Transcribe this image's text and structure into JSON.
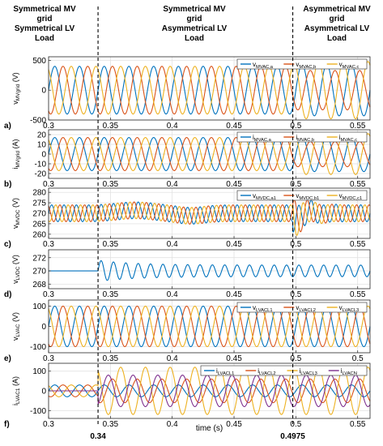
{
  "headers": [
    {
      "lines": [
        "Symmetrical MV",
        "grid",
        "Symmetrical LV",
        "Load"
      ]
    },
    {
      "lines": [
        "Symmetrical MV",
        "grid",
        "Asymmetrical LV",
        "Load"
      ]
    },
    {
      "lines": [
        "Asymmetrical MV",
        "grid",
        "Asymmetrical LV",
        "Load"
      ]
    }
  ],
  "markers": [
    {
      "t": 0.34,
      "label": "0.34"
    },
    {
      "t": 0.4975,
      "label": "0.4975"
    }
  ],
  "xlabel": "time (s)",
  "colors": {
    "blue": "#0072BD",
    "orange": "#D95319",
    "yellow": "#EDB120",
    "purple": "#7E2F8E"
  },
  "chart_data": [
    {
      "type": "line",
      "panel": "a)",
      "ylabel": "v_MVgrid (V)",
      "xlim": [
        0.3,
        0.56
      ],
      "ylim": [
        -500,
        560
      ],
      "xticks": [
        0.3,
        0.35,
        0.4,
        0.45,
        0.5,
        0.55
      ],
      "xtick_labels": [
        "0.3",
        "0.35",
        "0.4",
        "0.45",
        "0.5",
        "0.55"
      ],
      "yticks": [
        -500,
        0,
        500
      ],
      "ytick_labels": [
        "-500",
        "0",
        "500"
      ],
      "legend": [
        "v_MVAC,a",
        "v_MVAC,b",
        "v_MVAC,c"
      ],
      "series": [
        {
          "name": "v_MVAC,a",
          "color": "blue",
          "amplitude": 400,
          "phase_deg": 0,
          "frequency_hz": 50,
          "amplitude_after_0.4975": 430
        },
        {
          "name": "v_MVAC,b",
          "color": "orange",
          "amplitude": 400,
          "phase_deg": -120,
          "frequency_hz": 50,
          "amplitude_after_0.4975": 330
        },
        {
          "name": "v_MVAC,c",
          "color": "yellow",
          "amplitude": 400,
          "phase_deg": 120,
          "frequency_hz": 50,
          "amplitude_after_0.4975": 480
        }
      ]
    },
    {
      "type": "line",
      "panel": "b)",
      "ylabel": "i_MVgrid (A)",
      "xlim": [
        0.3,
        0.56
      ],
      "ylim": [
        -25,
        25
      ],
      "xticks": [
        0.3,
        0.35,
        0.4,
        0.45,
        0.5,
        0.55
      ],
      "xtick_labels": [
        "0.3",
        "0.35",
        "0.4",
        "0.45",
        "0.5",
        "0.55"
      ],
      "yticks": [
        -20,
        -10,
        0,
        10,
        20
      ],
      "ytick_labels": [
        "-20",
        "-10",
        "0",
        "10",
        "20"
      ],
      "legend": [
        "i_MVAC,a",
        "i_MVAC,b",
        "i_MVAC,c"
      ],
      "series": [
        {
          "name": "i_MVAC,a",
          "color": "blue",
          "amplitude": 17,
          "phase_deg": 0,
          "frequency_hz": 50,
          "amplitude_after_0.4975": 18
        },
        {
          "name": "i_MVAC,b",
          "color": "orange",
          "amplitude": 17,
          "phase_deg": -120,
          "frequency_hz": 50,
          "amplitude_after_0.4975": 13
        },
        {
          "name": "i_MVAC,c",
          "color": "yellow",
          "amplitude": 17,
          "phase_deg": 120,
          "frequency_hz": 50,
          "amplitude_after_0.4975": 21
        }
      ]
    },
    {
      "type": "line",
      "panel": "c)",
      "ylabel": "v_MVDC (V)",
      "xlim": [
        0.3,
        0.56
      ],
      "ylim": [
        258,
        282
      ],
      "xticks": [
        0.3,
        0.35,
        0.4,
        0.45,
        0.5,
        0.55
      ],
      "xtick_labels": [
        "0.3",
        "0.35",
        "0.4",
        "0.45",
        "0.5",
        "0.55"
      ],
      "yticks": [
        260,
        265,
        270,
        275,
        280
      ],
      "ytick_labels": [
        "260",
        "265",
        "270",
        "275",
        "280"
      ],
      "legend": [
        "v_MVDC,a1",
        "v_MVDC,b1",
        "v_MVDC,c1"
      ],
      "series": [
        {
          "name": "v_MVDC,a1",
          "color": "blue",
          "offset": 270,
          "ripple_amplitude": 4,
          "frequency_hz": 100,
          "phase_deg": 0
        },
        {
          "name": "v_MVDC,b1",
          "color": "orange",
          "offset": 270,
          "ripple_amplitude": 4,
          "frequency_hz": 100,
          "phase_deg": -240
        },
        {
          "name": "v_MVDC,c1",
          "color": "yellow",
          "offset": 270,
          "ripple_amplitude": 4,
          "frequency_hz": 100,
          "phase_deg": 240
        }
      ]
    },
    {
      "type": "line",
      "panel": "d)",
      "ylabel": "v_LVDC (V)",
      "xlim": [
        0.3,
        0.56
      ],
      "ylim": [
        267.3,
        273.2
      ],
      "xticks": [
        0.3,
        0.35,
        0.4,
        0.45,
        0.5,
        0.55
      ],
      "xtick_labels": [
        "0.3",
        "0.35",
        "0.4",
        "0.45",
        "0.5",
        "0.55"
      ],
      "yticks": [
        268,
        270,
        272
      ],
      "ytick_labels": [
        "268",
        "270",
        "272"
      ],
      "legend": [],
      "series": [
        {
          "name": "v_LVDC",
          "color": "blue",
          "steady_value": 270,
          "oscillation_amplitude": 1.6,
          "frequency_hz": 100,
          "start_t": 0.34
        }
      ]
    },
    {
      "type": "line",
      "panel": "e)",
      "ylabel": "v_LVAC (V)",
      "xlim": [
        0.3,
        0.56
      ],
      "ylim": [
        -130,
        130
      ],
      "xticks": [
        0.3,
        0.35,
        0.4,
        0.45,
        0.5,
        0.55
      ],
      "xtick_labels": [
        "0.3",
        "0.35",
        "0.4",
        "0.45",
        "0.5",
        "0.5\n5"
      ],
      "yticks": [
        -100,
        0,
        100
      ],
      "ytick_labels": [
        "-100",
        "0",
        "100"
      ],
      "legend": [
        "v_LVACL1",
        "v_LVACL2",
        "v_LVACL3"
      ],
      "series": [
        {
          "name": "v_LVACL1",
          "color": "blue",
          "amplitude": 100,
          "phase_deg": 0,
          "frequency_hz": 50
        },
        {
          "name": "v_LVACL2",
          "color": "orange",
          "amplitude": 100,
          "phase_deg": -120,
          "frequency_hz": 50
        },
        {
          "name": "v_LVACL3",
          "color": "yellow",
          "amplitude": 100,
          "phase_deg": 120,
          "frequency_hz": 50
        }
      ]
    },
    {
      "type": "line",
      "panel": "f)",
      "ylabel": "i_LVAC1 (A)",
      "xlim": [
        0.3,
        0.56
      ],
      "ylim": [
        -140,
        140
      ],
      "xticks": [
        0.3,
        0.35,
        0.4,
        0.45,
        0.5,
        0.55
      ],
      "xtick_labels": [
        "0.3",
        "0.35",
        "0.4",
        "0.45",
        "0.5",
        "0.55"
      ],
      "yticks": [
        -100,
        0,
        100
      ],
      "ytick_labels": [
        "-100",
        "0",
        "100"
      ],
      "legend": [
        "i_LVACL1",
        "i_LVACL2",
        "i_LVACL3",
        "i_LVACN"
      ],
      "series": [
        {
          "name": "i_LVACL1",
          "color": "blue",
          "amplitude_before_0.34": 30,
          "amplitude_after_0.34": 30,
          "phase_deg": 0,
          "frequency_hz": 50
        },
        {
          "name": "i_LVACL2",
          "color": "orange",
          "amplitude_before_0.34": 30,
          "amplitude_after_0.34": 60,
          "phase_deg": -120,
          "frequency_hz": 50
        },
        {
          "name": "i_LVACL3",
          "color": "yellow",
          "amplitude_before_0.34": 30,
          "amplitude_after_0.34": 120,
          "phase_deg": 120,
          "frequency_hz": 50
        },
        {
          "name": "i_LVACN",
          "color": "purple",
          "amplitude_before_0.34": 0,
          "amplitude_after_0.34": 80,
          "phase_deg": -60,
          "frequency_hz": 50
        }
      ]
    }
  ]
}
